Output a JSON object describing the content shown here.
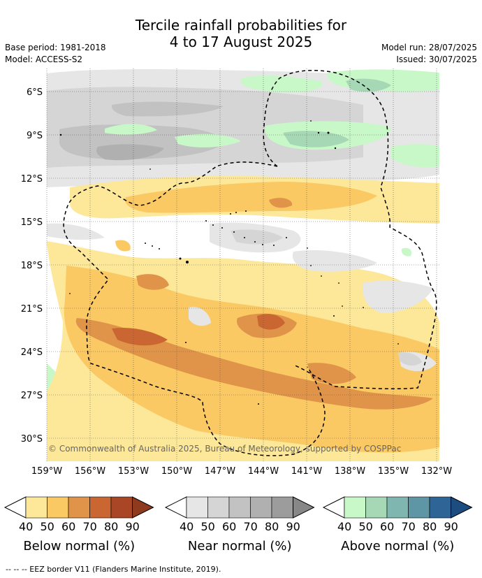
{
  "title": {
    "line1": "Tercile rainfall probabilities for",
    "line2": "4 to 17 August 2025"
  },
  "meta": {
    "base_period": "Base period: 1981-2018",
    "model": "Model: ACCESS-S2",
    "model_run": "Model run: 28/07/2025",
    "issued": "Issued: 30/07/2025"
  },
  "map": {
    "lat_labels": [
      "6°S",
      "9°S",
      "12°S",
      "15°S",
      "18°S",
      "21°S",
      "24°S",
      "27°S",
      "30°S"
    ],
    "lon_labels": [
      "159°W",
      "156°W",
      "153°W",
      "150°W",
      "147°W",
      "144°W",
      "141°W",
      "138°W",
      "135°W",
      "132°W"
    ],
    "copyright": "© Commonwealth of Australia 2025, Bureau of Meteorology, supported by COSPPac"
  },
  "colorbars": [
    {
      "name": "below",
      "title": "Below normal (%)",
      "ticks": [
        "40",
        "50",
        "60",
        "70",
        "80",
        "90"
      ],
      "colors": [
        "#fde89a",
        "#fbc964",
        "#e0944a",
        "#ca6632",
        "#a84626",
        "#8e3a1e"
      ]
    },
    {
      "name": "near",
      "title": "Near normal (%)",
      "ticks": [
        "40",
        "50",
        "60",
        "70",
        "80",
        "90"
      ],
      "colors": [
        "#e6e6e6",
        "#d5d5d5",
        "#c2c2c2",
        "#b0b0b0",
        "#9c9c9c",
        "#878787"
      ]
    },
    {
      "name": "above",
      "title": "Above normal (%)",
      "ticks": [
        "40",
        "50",
        "60",
        "70",
        "80",
        "90"
      ],
      "colors": [
        "#c8f8c8",
        "#a6d8b6",
        "#80b6b0",
        "#5e96a6",
        "#2f6496",
        "#1c4c80"
      ]
    }
  ],
  "footer": "--  --  -- EEZ border V11 (Flanders Marine Institute, 2019)."
}
